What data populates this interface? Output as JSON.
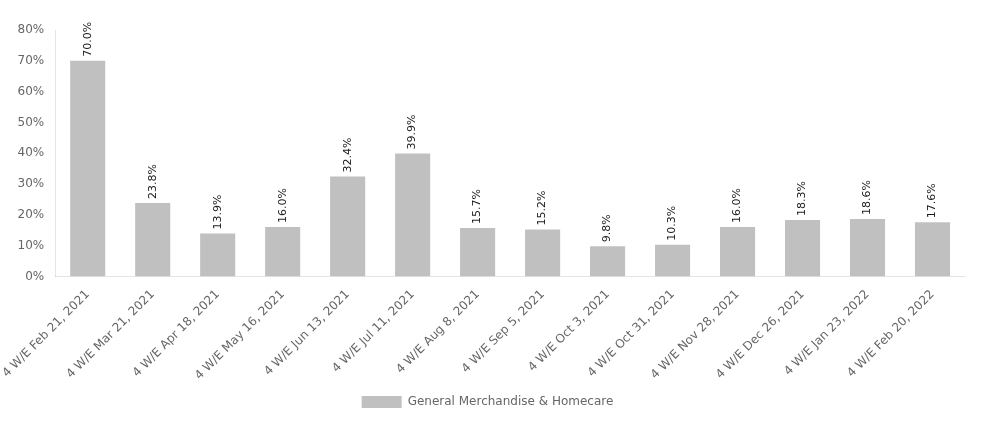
{
  "chart_data": {
    "type": "bar",
    "categories": [
      "4 W/E Feb 21, 2021",
      "4 W/E Mar 21, 2021",
      "4 W/E Apr 18, 2021",
      "4 W/E May 16, 2021",
      "4 W/E Jun 13, 2021",
      "4 W/E Jul 11, 2021",
      "4 W/E Aug 8, 2021",
      "4 W/E Sep 5, 2021",
      "4 W/E Oct 3, 2021",
      "4 W/E Oct 31, 2021",
      "4 W/E Nov 28, 2021",
      "4 W/E Dec 26, 2021",
      "4 W/E Jan 23, 2022",
      "4 W/E Feb 20, 2022"
    ],
    "series": [
      {
        "name": "General Merchandise & Homecare",
        "color": "#c0c0c0",
        "values": [
          70.0,
          23.8,
          13.9,
          16.0,
          32.4,
          39.9,
          15.7,
          15.2,
          9.8,
          10.3,
          16.0,
          18.3,
          18.6,
          17.6
        ],
        "value_labels": [
          "70.0%",
          "23.8%",
          "13.9%",
          "16.0%",
          "32.4%",
          "39.9%",
          "15.7%",
          "15.2%",
          "9.8%",
          "10.3%",
          "16.0%",
          "18.3%",
          "18.6%",
          "17.6%"
        ]
      }
    ],
    "ylim": [
      0,
      80
    ],
    "yticks": [
      {
        "value": 0,
        "label": "0%"
      },
      {
        "value": 10,
        "label": "10%"
      },
      {
        "value": 20,
        "label": "20%"
      },
      {
        "value": 30,
        "label": "30%"
      },
      {
        "value": 40,
        "label": "40%"
      },
      {
        "value": 50,
        "label": "50%"
      },
      {
        "value": 60,
        "label": "60%"
      },
      {
        "value": 70,
        "label": "70%"
      },
      {
        "value": 80,
        "label": "80%"
      }
    ],
    "grid": false,
    "legend": "bottom",
    "data_labels": true
  }
}
